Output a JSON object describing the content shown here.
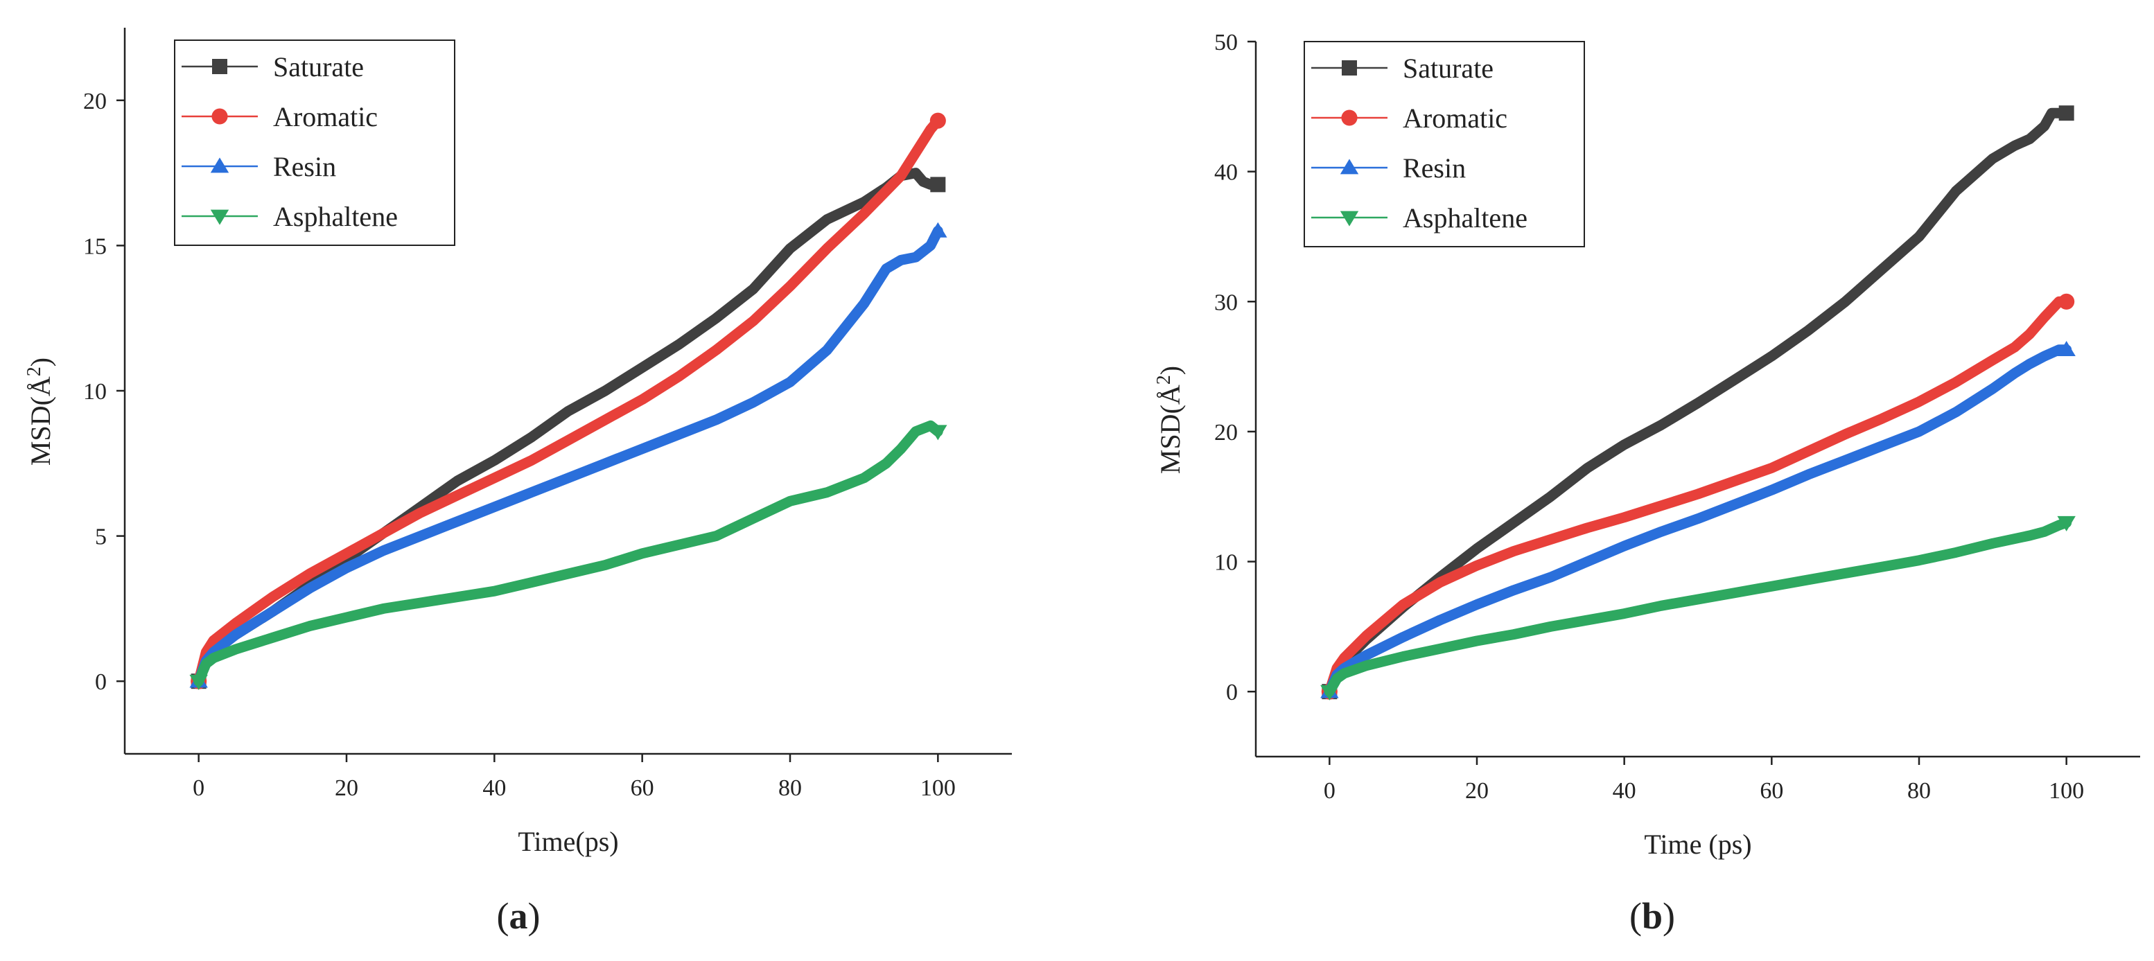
{
  "chart_data": [
    {
      "type": "line",
      "panel_label": "a",
      "title": "",
      "xlabel": "Time(ps)",
      "ylabel": "MSD(Å²)",
      "ylabel_base": "MSD(Å",
      "ylabel_sup": "2",
      "ylabel_close": ")",
      "xlim": [
        -10,
        110
      ],
      "ylim": [
        -2.5,
        22.5
      ],
      "xticks": [
        0,
        20,
        40,
        60,
        80,
        100
      ],
      "yticks": [
        0,
        5,
        10,
        15,
        20
      ],
      "grid": false,
      "legend_position": "top-left",
      "series": [
        {
          "name": "Saturate",
          "color": "#404040",
          "marker": "square",
          "x": [
            0,
            1,
            2,
            5,
            10,
            15,
            20,
            25,
            30,
            35,
            40,
            45,
            50,
            55,
            60,
            65,
            70,
            75,
            80,
            85,
            90,
            93,
            95,
            97,
            98,
            99,
            100
          ],
          "y": [
            0,
            0.8,
            1.1,
            1.6,
            2.4,
            3.3,
            4.2,
            5.1,
            6.0,
            6.9,
            7.6,
            8.4,
            9.3,
            10.0,
            10.8,
            11.6,
            12.5,
            13.5,
            14.9,
            15.9,
            16.5,
            17.0,
            17.4,
            17.5,
            17.2,
            17.1,
            17.1
          ]
        },
        {
          "name": "Aromatic",
          "color": "#e8403a",
          "marker": "circle",
          "x": [
            0,
            1,
            2,
            5,
            10,
            15,
            20,
            25,
            30,
            35,
            40,
            45,
            50,
            55,
            60,
            65,
            70,
            75,
            80,
            85,
            90,
            95,
            97,
            99,
            100
          ],
          "y": [
            0,
            1.0,
            1.4,
            2.0,
            2.9,
            3.7,
            4.4,
            5.1,
            5.8,
            6.4,
            7.0,
            7.6,
            8.3,
            9.0,
            9.7,
            10.5,
            11.4,
            12.4,
            13.6,
            14.9,
            16.1,
            17.4,
            18.2,
            19.0,
            19.3
          ]
        },
        {
          "name": "Resin",
          "color": "#2a6fdb",
          "marker": "triangle-up",
          "x": [
            0,
            1,
            2,
            5,
            10,
            15,
            20,
            25,
            30,
            35,
            40,
            45,
            50,
            55,
            60,
            65,
            70,
            75,
            80,
            85,
            90,
            93,
            95,
            97,
            99,
            100
          ],
          "y": [
            0,
            0.7,
            1.0,
            1.6,
            2.4,
            3.2,
            3.9,
            4.5,
            5.0,
            5.5,
            6.0,
            6.5,
            7.0,
            7.5,
            8.0,
            8.5,
            9.0,
            9.6,
            10.3,
            11.4,
            13.0,
            14.2,
            14.5,
            14.6,
            15.0,
            15.5
          ]
        },
        {
          "name": "Asphaltene",
          "color": "#2ea860",
          "marker": "triangle-down",
          "x": [
            0,
            1,
            2,
            5,
            10,
            15,
            20,
            25,
            30,
            35,
            40,
            45,
            50,
            55,
            60,
            65,
            70,
            75,
            80,
            85,
            90,
            93,
            95,
            97,
            99,
            100
          ],
          "y": [
            0,
            0.6,
            0.8,
            1.1,
            1.5,
            1.9,
            2.2,
            2.5,
            2.7,
            2.9,
            3.1,
            3.4,
            3.7,
            4.0,
            4.4,
            4.7,
            5.0,
            5.6,
            6.2,
            6.5,
            7.0,
            7.5,
            8.0,
            8.6,
            8.8,
            8.6
          ]
        }
      ]
    },
    {
      "type": "line",
      "panel_label": "b",
      "title": "",
      "xlabel": "Time (ps)",
      "ylabel": "MSD(Å²)",
      "ylabel_base": "MSD(Å",
      "ylabel_sup": "2",
      "ylabel_close": ")",
      "xlim": [
        -10,
        110
      ],
      "ylim": [
        -5,
        50
      ],
      "xticks": [
        0,
        20,
        40,
        60,
        80,
        100
      ],
      "yticks": [
        0,
        10,
        20,
        30,
        40,
        50
      ],
      "grid": false,
      "legend_position": "top-left",
      "series": [
        {
          "name": "Saturate",
          "color": "#404040",
          "marker": "square",
          "x": [
            0,
            1,
            2,
            5,
            10,
            15,
            20,
            25,
            30,
            35,
            40,
            45,
            50,
            55,
            60,
            65,
            70,
            75,
            80,
            85,
            90,
            93,
            95,
            97,
            98,
            100
          ],
          "y": [
            0,
            1.5,
            2.3,
            4.0,
            6.5,
            8.8,
            11.0,
            13.0,
            15.0,
            17.2,
            19.0,
            20.5,
            22.2,
            24.0,
            25.8,
            27.8,
            30.0,
            32.5,
            35.0,
            38.5,
            41.0,
            42.0,
            42.5,
            43.5,
            44.5,
            44.5
          ]
        },
        {
          "name": "Aromatic",
          "color": "#e8403a",
          "marker": "circle",
          "x": [
            0,
            1,
            2,
            5,
            10,
            15,
            20,
            25,
            30,
            35,
            40,
            45,
            50,
            55,
            60,
            65,
            70,
            75,
            80,
            85,
            90,
            93,
            95,
            97,
            99,
            100
          ],
          "y": [
            0,
            1.8,
            2.6,
            4.3,
            6.7,
            8.4,
            9.7,
            10.8,
            11.7,
            12.6,
            13.4,
            14.3,
            15.2,
            16.2,
            17.2,
            18.5,
            19.8,
            21.0,
            22.3,
            23.8,
            25.5,
            26.5,
            27.5,
            28.8,
            30.0,
            30.0
          ]
        },
        {
          "name": "Resin",
          "color": "#2a6fdb",
          "marker": "triangle-up",
          "x": [
            0,
            1,
            2,
            5,
            10,
            15,
            20,
            25,
            30,
            35,
            40,
            45,
            50,
            55,
            60,
            65,
            70,
            75,
            80,
            85,
            90,
            93,
            95,
            97,
            99,
            100
          ],
          "y": [
            0,
            1.3,
            1.8,
            2.8,
            4.2,
            5.5,
            6.7,
            7.8,
            8.8,
            10.0,
            11.2,
            12.3,
            13.3,
            14.4,
            15.5,
            16.7,
            17.8,
            18.9,
            20.0,
            21.5,
            23.3,
            24.5,
            25.2,
            25.8,
            26.3,
            26.3
          ]
        },
        {
          "name": "Asphaltene",
          "color": "#2ea860",
          "marker": "triangle-down",
          "x": [
            0,
            1,
            2,
            5,
            10,
            15,
            20,
            25,
            30,
            35,
            40,
            45,
            50,
            55,
            60,
            65,
            70,
            75,
            80,
            85,
            90,
            95,
            97,
            99,
            100
          ],
          "y": [
            0,
            1.0,
            1.4,
            2.0,
            2.7,
            3.3,
            3.9,
            4.4,
            5.0,
            5.5,
            6.0,
            6.6,
            7.1,
            7.6,
            8.1,
            8.6,
            9.1,
            9.6,
            10.1,
            10.7,
            11.4,
            12.0,
            12.3,
            12.8,
            13.0
          ]
        }
      ]
    }
  ]
}
